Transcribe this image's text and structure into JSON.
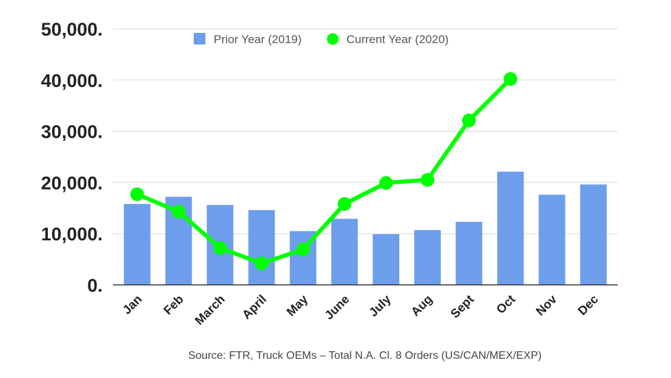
{
  "chart_data": {
    "type": "bar",
    "categories": [
      "Jan",
      "Feb",
      "March",
      "April",
      "May",
      "June",
      "July",
      "Aug",
      "Sept",
      "Oct",
      "Nov",
      "Dec"
    ],
    "series": [
      {
        "name": "Prior Year (2019)",
        "type": "bar",
        "color": "#6d9eeb",
        "values": [
          15800,
          17200,
          15600,
          14600,
          10500,
          12900,
          9900,
          10700,
          12300,
          22100,
          17600,
          19600
        ]
      },
      {
        "name": "Current Year (2020)",
        "type": "line",
        "color": "#00ff00",
        "values": [
          17700,
          14300,
          7200,
          4200,
          6900,
          15800,
          19900,
          20500,
          32100,
          40200,
          null,
          null
        ]
      }
    ],
    "ylim": [
      0,
      50000
    ],
    "yticks": [
      0,
      10000,
      20000,
      30000,
      40000,
      50000
    ],
    "ytick_labels": [
      "0.",
      "10,000.",
      "20,000.",
      "30,000.",
      "40,000.",
      "50,000."
    ],
    "grid": true,
    "legend": "top-center",
    "xlabel": "",
    "ylabel": "",
    "title": "",
    "source": "Source: FTR, Truck OEMs – Total N.A. Cl. 8 Orders (US/CAN/MEX/EXP)"
  }
}
